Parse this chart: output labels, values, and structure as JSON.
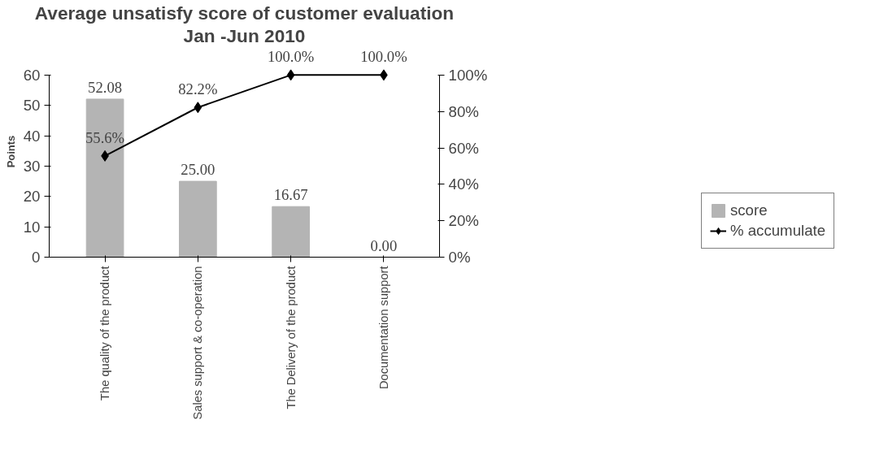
{
  "chart_data": {
    "type": "bar",
    "title": "Average unsatisfy score of customer evaluation",
    "subtitle": "Jan -Jun 2010",
    "ylabel": "Points",
    "categories": [
      "The quality of the product",
      "Sales support & co-operation",
      "The Delivery of the product",
      "Documentation support"
    ],
    "series": [
      {
        "name": "score",
        "color": "#b4b4b4",
        "values": [
          52.08,
          25.0,
          16.67,
          0.0
        ],
        "value_labels": [
          "52.08",
          "25.00",
          "16.67",
          "0.00"
        ]
      },
      {
        "name": "% accumulate",
        "type": "line",
        "axis": "y2",
        "color": "#000000",
        "marker": "diamond",
        "values": [
          55.6,
          82.2,
          100.0,
          100.0
        ],
        "value_labels": [
          "55.6%",
          "82.2%",
          "100.0%",
          "100.0%"
        ]
      }
    ],
    "ylim": [
      0,
      60
    ],
    "yticks": [
      0,
      10,
      20,
      30,
      40,
      50,
      60
    ],
    "y2lim": [
      0,
      100
    ],
    "y2ticks": [
      {
        "value": 0,
        "label": "0%"
      },
      {
        "value": 20,
        "label": "20%"
      },
      {
        "value": 40,
        "label": "40%"
      },
      {
        "value": 60,
        "label": "60%"
      },
      {
        "value": 80,
        "label": "80%"
      },
      {
        "value": 100,
        "label": "100%"
      }
    ],
    "grid": false,
    "legend": "right"
  }
}
